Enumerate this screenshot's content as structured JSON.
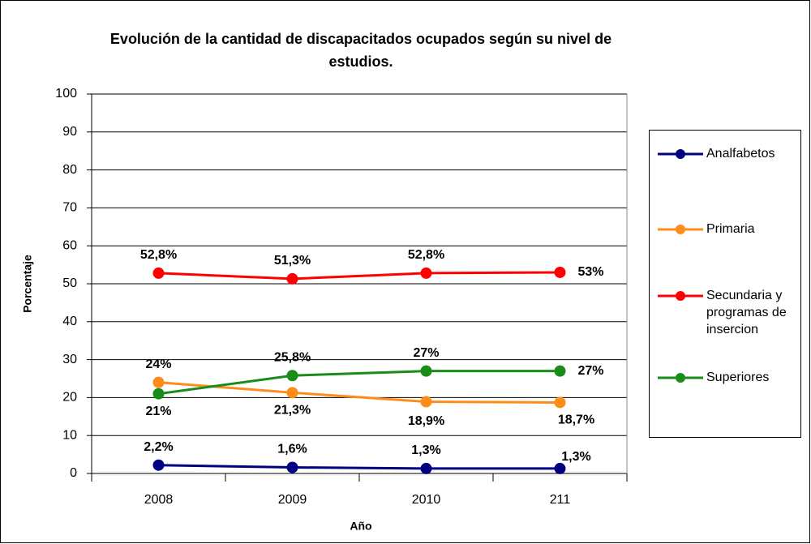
{
  "chart_data": {
    "type": "line",
    "title": "Evolución de la cantidad de discapacitados ocupados según su nivel de estudios.",
    "x_label": "Año",
    "y_label": "Porcentaje",
    "categories": [
      "2008",
      "2009",
      "2010",
      "211"
    ],
    "ylim": [
      0,
      100
    ],
    "yticks": [
      0,
      10,
      20,
      30,
      40,
      50,
      60,
      70,
      80,
      90,
      100
    ],
    "grid": true,
    "legend": "right",
    "series": [
      {
        "name": "Analfabetos",
        "color": "#000080",
        "values": [
          2.2,
          1.6,
          1.3,
          1.3
        ],
        "value_labels": [
          "2,2%",
          "1,6%",
          "1,3%",
          "1,3%"
        ]
      },
      {
        "name": "Primaria",
        "color": "#ff8c1a",
        "values": [
          24,
          21.3,
          18.9,
          18.7
        ],
        "value_labels": [
          "24%",
          "21,3%",
          "18,9%",
          "18,7%"
        ]
      },
      {
        "name": "Secundaria y programas de insercion",
        "color": "#ff0000",
        "values": [
          52.8,
          51.3,
          52.8,
          53
        ],
        "value_labels": [
          "52,8%",
          "51,3%",
          "52,8%",
          "53%"
        ]
      },
      {
        "name": "Superiores",
        "color": "#1a8c1a",
        "values": [
          21,
          25.8,
          27,
          27
        ],
        "value_labels": [
          "21%",
          "25,8%",
          "27%",
          "27%"
        ]
      }
    ]
  }
}
